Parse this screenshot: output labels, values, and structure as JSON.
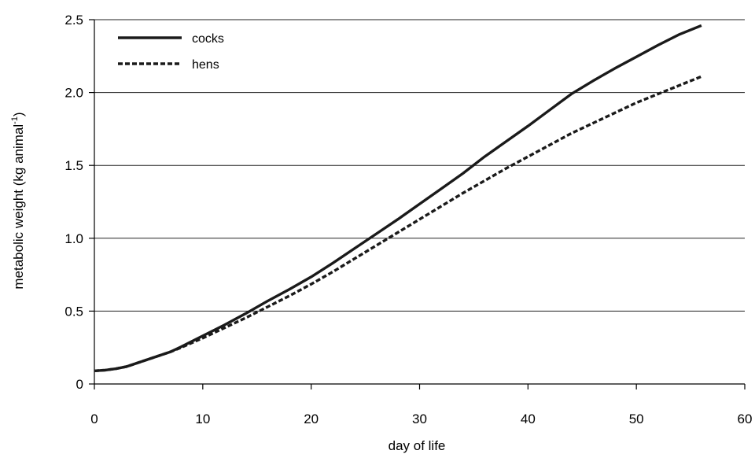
{
  "chart_data": {
    "type": "line",
    "title": "",
    "xlabel": "day of life",
    "ylabel_main": "metabolic weight (kg animal",
    "ylabel_sup": "-1",
    "ylabel_close": ")",
    "xlim": [
      0,
      60
    ],
    "ylim": [
      0,
      2.5
    ],
    "xticks": [
      0,
      10,
      20,
      30,
      40,
      50,
      60
    ],
    "xtick_labels": [
      "0",
      "10",
      "20",
      "30",
      "40",
      "50",
      "60"
    ],
    "yticks": [
      0,
      0.5,
      1.0,
      1.5,
      2.0,
      2.5
    ],
    "ytick_labels": [
      "0",
      "0.5",
      "1.0",
      "1.5",
      "2.0",
      "2.5"
    ],
    "grid": "horizontal",
    "legend_position": "top-left",
    "series": [
      {
        "name": "cocks",
        "style": "solid",
        "color": "#1a1a1a",
        "x": [
          0,
          1,
          2,
          3,
          4,
          5,
          6,
          7,
          8,
          10,
          12,
          14,
          16,
          18,
          20,
          22,
          24,
          26,
          28,
          30,
          32,
          34,
          36,
          38,
          40,
          42,
          44,
          46,
          48,
          50,
          52,
          54,
          56
        ],
        "y": [
          0.09,
          0.095,
          0.105,
          0.12,
          0.145,
          0.17,
          0.195,
          0.22,
          0.255,
          0.33,
          0.405,
          0.485,
          0.57,
          0.65,
          0.735,
          0.83,
          0.93,
          1.03,
          1.13,
          1.235,
          1.34,
          1.445,
          1.56,
          1.665,
          1.77,
          1.88,
          1.99,
          2.08,
          2.165,
          2.245,
          2.325,
          2.4,
          2.46
        ]
      },
      {
        "name": "hens",
        "style": "dashed",
        "color": "#1a1a1a",
        "x": [
          0,
          1,
          2,
          3,
          4,
          5,
          6,
          7,
          8,
          10,
          12,
          14,
          16,
          18,
          20,
          22,
          24,
          26,
          28,
          30,
          32,
          34,
          36,
          38,
          40,
          42,
          44,
          46,
          48,
          50,
          52,
          54,
          56
        ],
        "y": [
          0.09,
          0.095,
          0.105,
          0.12,
          0.145,
          0.17,
          0.195,
          0.22,
          0.25,
          0.315,
          0.385,
          0.455,
          0.53,
          0.605,
          0.685,
          0.77,
          0.86,
          0.95,
          1.04,
          1.13,
          1.22,
          1.31,
          1.395,
          1.48,
          1.56,
          1.64,
          1.72,
          1.79,
          1.86,
          1.93,
          1.99,
          2.05,
          2.11
        ]
      }
    ]
  }
}
